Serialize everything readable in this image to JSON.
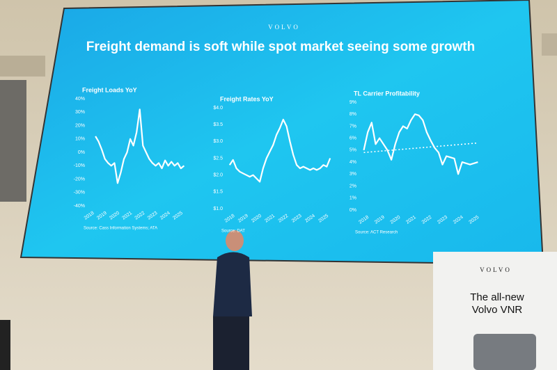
{
  "slide": {
    "brand": "VOLVO",
    "headline": "Freight demand is soft while spot market seeing some growth"
  },
  "banner": {
    "brand": "VOLVO",
    "line1": "The all-new",
    "line2": "Volvo VNR"
  },
  "chart_data": [
    {
      "type": "line",
      "title": "Freight Loads YoY",
      "source": "Source: Cass Information Systems; ATA",
      "x": [
        2018.5,
        2018.75,
        2019,
        2019.25,
        2019.5,
        2019.75,
        2020,
        2020.25,
        2020.5,
        2020.75,
        2021,
        2021.25,
        2021.5,
        2021.75,
        2022,
        2022.25,
        2022.5,
        2022.75,
        2023,
        2023.25,
        2023.5,
        2023.75,
        2024,
        2024.25,
        2024.5,
        2024.75,
        2025,
        2025.25,
        2025.5
      ],
      "series": [
        {
          "color": "#ffffff",
          "values": [
            12,
            8,
            2,
            -5,
            -8,
            -10,
            -8,
            -23,
            -15,
            -5,
            0,
            10,
            5,
            15,
            32,
            5,
            0,
            -5,
            -8,
            -10,
            -8,
            -12,
            -6,
            -10,
            -7,
            -10,
            -8,
            -12,
            -10
          ]
        }
      ],
      "xlim": [
        2018,
        2025.7
      ],
      "xticks": [
        2018,
        2019,
        2020,
        2021,
        2022,
        2023,
        2024,
        2025
      ],
      "ylim": [
        -40,
        40
      ],
      "yticks": [
        {
          "value": 40,
          "label": "40%"
        },
        {
          "value": 30,
          "label": "30%"
        },
        {
          "value": 20,
          "label": "20%"
        },
        {
          "value": 10,
          "label": "10%"
        },
        {
          "value": 0,
          "label": "0%"
        },
        {
          "value": -10,
          "label": "-10%"
        },
        {
          "value": -20,
          "label": "-20%"
        },
        {
          "value": -30,
          "label": "-30%"
        },
        {
          "value": -40,
          "label": "-40%"
        }
      ]
    },
    {
      "type": "line",
      "title": "Freight Rates YoY",
      "source": "Source: DAT",
      "x": [
        2018,
        2018.25,
        2018.5,
        2018.75,
        2019,
        2019.25,
        2019.5,
        2019.75,
        2020,
        2020.25,
        2020.5,
        2020.75,
        2021,
        2021.25,
        2021.5,
        2021.75,
        2022,
        2022.25,
        2022.5,
        2022.75,
        2023,
        2023.25,
        2023.5,
        2023.75,
        2024,
        2024.25,
        2024.5,
        2024.75,
        2025,
        2025.25,
        2025.5
      ],
      "series": [
        {
          "color": "#ffffff",
          "values": [
            2.3,
            2.45,
            2.2,
            2.1,
            2.05,
            2.0,
            1.95,
            2.0,
            1.9,
            1.8,
            2.2,
            2.5,
            2.7,
            2.9,
            3.2,
            3.4,
            3.65,
            3.45,
            3.0,
            2.6,
            2.3,
            2.2,
            2.25,
            2.2,
            2.15,
            2.2,
            2.15,
            2.2,
            2.3,
            2.25,
            2.5
          ]
        }
      ],
      "xlim": [
        2017.8,
        2025.7
      ],
      "xticks": [
        2018,
        2019,
        2020,
        2021,
        2022,
        2023,
        2024,
        2025
      ],
      "ylim": [
        1.0,
        4.0
      ],
      "yticks": [
        {
          "value": 4.0,
          "label": "$4.0"
        },
        {
          "value": 3.5,
          "label": "$3.5"
        },
        {
          "value": 3.0,
          "label": "$3.0"
        },
        {
          "value": 2.5,
          "label": "$2.5"
        },
        {
          "value": 2.0,
          "label": "$2.0"
        },
        {
          "value": 1.5,
          "label": "$1.5"
        },
        {
          "value": 1.0,
          "label": "$1.0"
        }
      ]
    },
    {
      "type": "line",
      "title": "TL Carrier Profitability",
      "source": "Source: ACT Research",
      "x": [
        2018,
        2018.25,
        2018.5,
        2018.75,
        2019,
        2019.25,
        2019.5,
        2019.75,
        2020,
        2020.25,
        2020.5,
        2020.75,
        2021,
        2021.25,
        2021.5,
        2021.75,
        2022,
        2022.25,
        2022.5,
        2022.75,
        2023,
        2023.25,
        2023.5,
        2023.75,
        2024,
        2024.25,
        2024.5,
        2024.75,
        2025,
        2025.25
      ],
      "series": [
        {
          "color": "#ffffff",
          "values": [
            5.0,
            6.5,
            7.3,
            5.5,
            6.0,
            5.5,
            5.0,
            4.2,
            5.5,
            6.5,
            7.0,
            6.8,
            7.5,
            8.0,
            7.9,
            7.5,
            6.5,
            5.8,
            5.2,
            4.8,
            3.8,
            4.5,
            4.4,
            4.3,
            3.0,
            4.0,
            3.9,
            3.8,
            3.9,
            4.0
          ]
        },
        {
          "color": "#ffffff",
          "style": "dotted",
          "values": [
            4.8,
            null,
            null,
            null,
            null,
            null,
            null,
            null,
            null,
            null,
            null,
            null,
            null,
            null,
            null,
            null,
            null,
            null,
            null,
            null,
            null,
            null,
            null,
            null,
            null,
            null,
            null,
            null,
            null,
            5.6
          ]
        }
      ],
      "xlim": [
        2017.8,
        2025.5
      ],
      "xticks": [
        2018,
        2019,
        2020,
        2021,
        2022,
        2023,
        2024,
        2025
      ],
      "ylim": [
        0,
        9
      ],
      "yticks": [
        {
          "value": 9,
          "label": "9%"
        },
        {
          "value": 8,
          "label": "8%"
        },
        {
          "value": 7,
          "label": "7%"
        },
        {
          "value": 6,
          "label": "6%"
        },
        {
          "value": 5,
          "label": "5%"
        },
        {
          "value": 4,
          "label": "4%"
        },
        {
          "value": 3,
          "label": "3%"
        },
        {
          "value": 2,
          "label": "2%"
        },
        {
          "value": 1,
          "label": "1%"
        },
        {
          "value": 0,
          "label": "0%"
        }
      ]
    }
  ]
}
